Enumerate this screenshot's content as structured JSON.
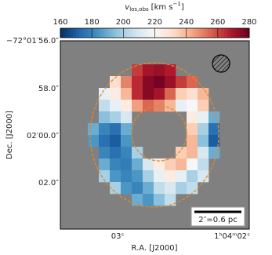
{
  "chart_data": {
    "type": "heatmap",
    "colorbar_label": {
      "symbol": "v",
      "subscript": "los,obs",
      "unit": "[km s",
      "exponent": "−1",
      "close": "]"
    },
    "clim": [
      160,
      280
    ],
    "cticks": [
      160,
      180,
      200,
      220,
      240,
      260,
      280
    ],
    "colormap": [
      "#053061",
      "#2166ac",
      "#4393c3",
      "#92c5de",
      "#d1e5f0",
      "#f7f7f7",
      "#fddbc7",
      "#f4a582",
      "#d6604d",
      "#b2182b",
      "#67001f"
    ],
    "xlabel": "R.A. [J2000]",
    "ylabel": "Dec. [J2000]",
    "xtick_labels": [
      "03ˢ",
      "1ʰ04ᵐ02ˢ"
    ],
    "ytick_labels": [
      "−72°01′56.0″",
      "58.0″",
      "02′00.0″",
      "02.0″"
    ],
    "scalebar_label": "2″=0.6 pc",
    "values": [
      [
        null,
        null,
        null,
        null,
        262,
        270,
        272,
        268,
        null,
        null,
        null,
        null
      ],
      [
        null,
        null,
        230,
        250,
        265,
        275,
        278,
        272,
        262,
        255,
        null,
        null
      ],
      [
        null,
        215,
        225,
        240,
        265,
        275,
        270,
        255,
        235,
        230,
        240,
        null
      ],
      [
        null,
        205,
        215,
        225,
        245,
        255,
        250,
        240,
        215,
        220,
        235,
        null
      ],
      [
        null,
        195,
        200,
        210,
        null,
        null,
        null,
        null,
        null,
        225,
        215,
        190
      ],
      [
        190,
        180,
        175,
        190,
        null,
        null,
        null,
        null,
        null,
        235,
        200,
        175
      ],
      [
        185,
        175,
        170,
        185,
        null,
        null,
        null,
        null,
        null,
        240,
        195,
        170
      ],
      [
        null,
        180,
        175,
        180,
        200,
        null,
        null,
        null,
        235,
        240,
        210,
        190
      ],
      [
        null,
        190,
        180,
        178,
        190,
        210,
        225,
        235,
        240,
        220,
        205,
        null
      ],
      [
        null,
        200,
        185,
        180,
        185,
        200,
        215,
        225,
        215,
        200,
        210,
        null
      ],
      [
        null,
        null,
        200,
        185,
        180,
        190,
        205,
        210,
        200,
        205,
        null,
        null
      ],
      [
        null,
        null,
        null,
        null,
        190,
        185,
        195,
        205,
        null,
        null,
        null,
        null
      ]
    ]
  }
}
